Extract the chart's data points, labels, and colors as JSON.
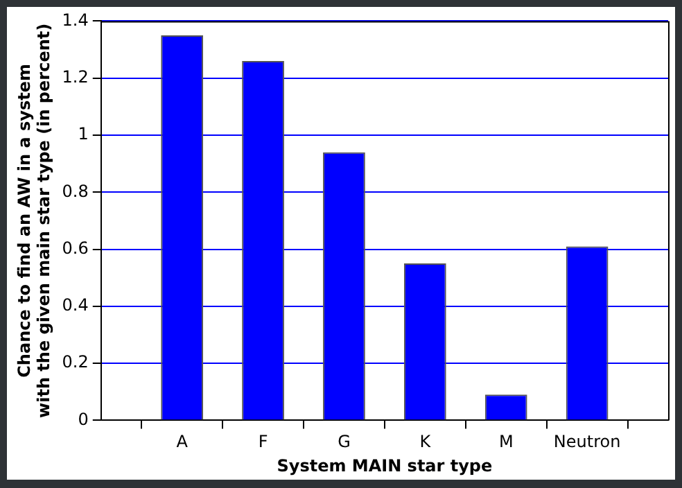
{
  "chart_data": {
    "type": "bar",
    "xlabel": "System MAIN star type",
    "ylabel": "Chance to find an AW in a system\nwith the given main star type (in percent)",
    "categories": [
      null,
      "A",
      "F",
      "G",
      "K",
      "M",
      "Neutron",
      null
    ],
    "values": [
      null,
      1.35,
      1.26,
      0.94,
      0.55,
      0.09,
      0.61,
      null
    ],
    "color": "#0000ff",
    "ylim": [
      0,
      1.4
    ],
    "yticks": [
      0,
      0.2,
      0.4,
      0.6,
      0.8,
      1,
      1.2,
      1.4
    ],
    "grid": "y",
    "legend": false
  }
}
